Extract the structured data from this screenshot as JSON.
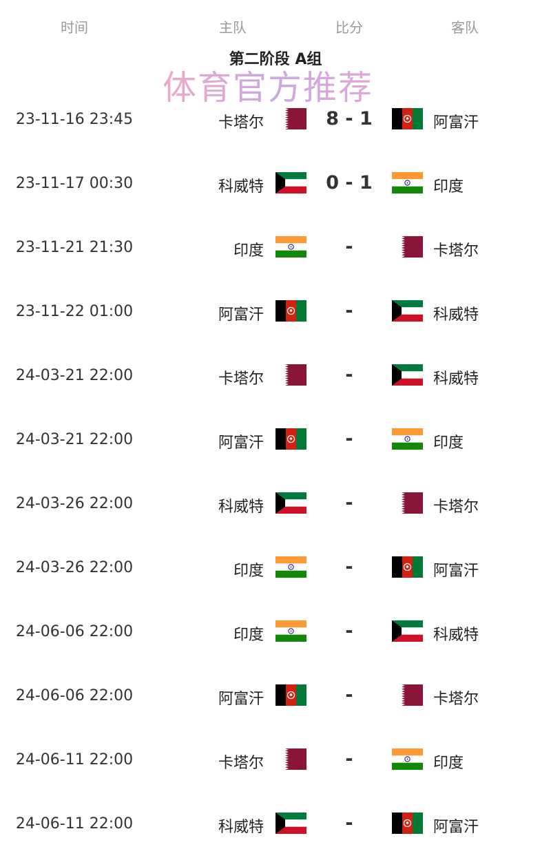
{
  "header": {
    "time": "时间",
    "home": "主队",
    "score": "比分",
    "away": "客队"
  },
  "group_title": "第二阶段 A组",
  "matches": [
    {
      "time": "23-11-16 23:45",
      "home": "卡塔尔",
      "home_flag": "qatar",
      "score": "8 - 1",
      "away": "阿富汗",
      "away_flag": "afghanistan"
    },
    {
      "time": "23-11-17 00:30",
      "home": "科威特",
      "home_flag": "kuwait",
      "score": "0 - 1",
      "away": "印度",
      "away_flag": "india"
    },
    {
      "time": "23-11-21 21:30",
      "home": "印度",
      "home_flag": "india",
      "score": "-",
      "away": "卡塔尔",
      "away_flag": "qatar"
    },
    {
      "time": "23-11-22 01:00",
      "home": "阿富汗",
      "home_flag": "afghanistan",
      "score": "-",
      "away": "科威特",
      "away_flag": "kuwait"
    },
    {
      "time": "24-03-21 22:00",
      "home": "卡塔尔",
      "home_flag": "qatar",
      "score": "-",
      "away": "科威特",
      "away_flag": "kuwait"
    },
    {
      "time": "24-03-21 22:00",
      "home": "阿富汗",
      "home_flag": "afghanistan",
      "score": "-",
      "away": "印度",
      "away_flag": "india"
    },
    {
      "time": "24-03-26 22:00",
      "home": "科威特",
      "home_flag": "kuwait",
      "score": "-",
      "away": "卡塔尔",
      "away_flag": "qatar"
    },
    {
      "time": "24-03-26 22:00",
      "home": "印度",
      "home_flag": "india",
      "score": "-",
      "away": "阿富汗",
      "away_flag": "afghanistan"
    },
    {
      "time": "24-06-06 22:00",
      "home": "印度",
      "home_flag": "india",
      "score": "-",
      "away": "科威特",
      "away_flag": "kuwait"
    },
    {
      "time": "24-06-06 22:00",
      "home": "阿富汗",
      "home_flag": "afghanistan",
      "score": "-",
      "away": "卡塔尔",
      "away_flag": "qatar"
    },
    {
      "time": "24-06-11 22:00",
      "home": "卡塔尔",
      "home_flag": "qatar",
      "score": "-",
      "away": "印度",
      "away_flag": "india"
    },
    {
      "time": "24-06-11 22:00",
      "home": "科威特",
      "home_flag": "kuwait",
      "score": "-",
      "away": "阿富汗",
      "away_flag": "afghanistan"
    }
  ],
  "watermark": "体育官方推荐"
}
